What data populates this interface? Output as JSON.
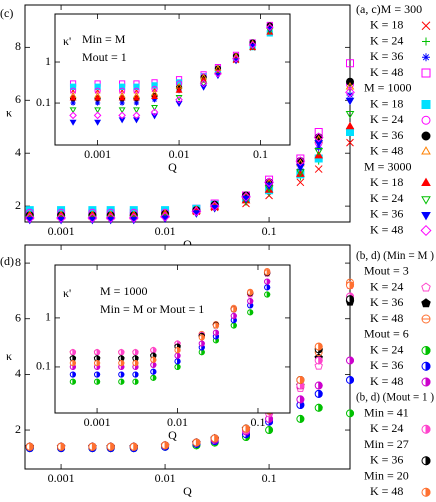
{
  "chart_data": [
    {
      "type": "scatter",
      "label": "(c)",
      "xlabel": "Q",
      "ylabel": "κ",
      "xscale": "log",
      "x": [
        0.0005,
        0.001,
        0.002,
        0.003,
        0.005,
        0.01,
        0.02,
        0.03,
        0.06,
        0.1,
        0.2,
        0.3,
        0.6
      ],
      "xlim": [
        0.00045,
        0.6
      ],
      "xticks": [
        0.001,
        0.01,
        0.1
      ],
      "ylim": [
        1.4,
        9.6
      ],
      "yticks": [
        2,
        4,
        6,
        8
      ],
      "inset": {
        "xlabel": "Q",
        "ylabel": "κ'",
        "xscale": "log",
        "yscale": "log",
        "text": [
          "Min = M",
          "Mout = 1"
        ],
        "x": [
          0.0005,
          0.001,
          0.002,
          0.003,
          0.005,
          0.01,
          0.02,
          0.03,
          0.05,
          0.08,
          0.13
        ],
        "xlim": [
          0.0003,
          0.23
        ],
        "xticks": [
          0.001,
          0.01,
          0.1
        ],
        "ylim": [
          0.0095,
          14.8
        ],
        "yticks": [
          0.1,
          1
        ]
      },
      "groups": [
        {
          "title": "(a, c)M = 300",
          "series": [
            {
              "name": "K = 18",
              "color": "#ff0000",
              "marker": "x",
              "values": [
                1.65,
                1.65,
                1.65,
                1.65,
                1.65,
                1.7,
                1.8,
                1.95,
                2.1,
                2.4,
                2.9,
                3.4,
                4.4
              ],
              "inset_values": [
                0.2,
                0.2,
                0.2,
                0.2,
                0.22,
                0.28,
                0.4,
                0.6,
                1.1,
                2.2,
                5
              ]
            },
            {
              "name": "K = 24",
              "color": "#00c000",
              "marker": "plus",
              "values": [
                1.65,
                1.65,
                1.65,
                1.65,
                1.65,
                1.7,
                1.8,
                1.95,
                2.15,
                2.5,
                3.1,
                3.7,
                4.8
              ],
              "inset_values": [
                0.12,
                0.12,
                0.12,
                0.12,
                0.14,
                0.22,
                0.38,
                0.6,
                1.2,
                2.4,
                5.5
              ]
            },
            {
              "name": "K = 36",
              "color": "#0000ff",
              "marker": "star",
              "values": [
                1.65,
                1.65,
                1.65,
                1.65,
                1.65,
                1.7,
                1.85,
                2.0,
                2.25,
                2.7,
                3.4,
                4.2,
                6.2
              ],
              "inset_values": [
                0.1,
                0.1,
                0.1,
                0.1,
                0.12,
                0.2,
                0.38,
                0.62,
                1.3,
                2.7,
                6.5
              ]
            },
            {
              "name": "K = 48",
              "color": "#ff00ff",
              "marker": "square",
              "values": [
                1.75,
                1.75,
                1.75,
                1.75,
                1.75,
                1.8,
                1.9,
                2.1,
                2.4,
                3.0,
                3.8,
                4.8,
                7.4
              ],
              "inset_values": [
                0.3,
                0.3,
                0.3,
                0.3,
                0.32,
                0.38,
                0.5,
                0.75,
                1.5,
                3,
                8
              ]
            }
          ]
        },
        {
          "title": "M = 1000",
          "series": [
            {
              "name": "K = 18",
              "color": "#00e0ff",
              "marker": "square-filled",
              "values": [
                1.85,
                1.85,
                1.85,
                1.85,
                1.85,
                1.85,
                1.9,
                2.05,
                2.3,
                2.6,
                3.2,
                3.8,
                4.8
              ],
              "inset_values": [
                0.25,
                0.25,
                0.25,
                0.25,
                0.27,
                0.32,
                0.45,
                0.65,
                1.2,
                2.3,
                5
              ]
            },
            {
              "name": "K = 24",
              "color": "#ff00ff",
              "marker": "circle",
              "values": [
                1.75,
                1.75,
                1.75,
                1.75,
                1.75,
                1.75,
                1.85,
                2.05,
                2.35,
                2.8,
                3.6,
                4.4,
                6.6
              ],
              "inset_values": [
                0.2,
                0.2,
                0.2,
                0.2,
                0.22,
                0.3,
                0.45,
                0.7,
                1.4,
                2.9,
                7.5
              ]
            },
            {
              "name": "K = 36",
              "color": "#000000",
              "marker": "circle-filled",
              "values": [
                1.65,
                1.65,
                1.65,
                1.65,
                1.65,
                1.7,
                1.85,
                2.05,
                2.4,
                2.9,
                3.7,
                4.6,
                6.7
              ],
              "inset_values": [
                0.13,
                0.13,
                0.13,
                0.13,
                0.15,
                0.24,
                0.42,
                0.7,
                1.4,
                3,
                7.8
              ]
            },
            {
              "name": "K = 48",
              "color": "#ff8000",
              "marker": "triangle",
              "values": [
                1.65,
                1.65,
                1.65,
                1.65,
                1.65,
                1.7,
                1.85,
                2.0,
                2.35,
                2.85,
                3.6,
                4.5,
                6.5
              ],
              "inset_values": [
                0.15,
                0.15,
                0.15,
                0.15,
                0.17,
                0.25,
                0.42,
                0.68,
                1.35,
                2.8,
                7.2
              ]
            }
          ]
        },
        {
          "title": "M = 3000",
          "series": [
            {
              "name": "K = 18",
              "color": "#ff0000",
              "marker": "triangle-filled",
              "values": [
                1.6,
                1.6,
                1.6,
                1.6,
                1.6,
                1.65,
                1.8,
                1.95,
                2.2,
                2.6,
                3.2,
                3.9,
                5.0
              ],
              "inset_values": [
                0.13,
                0.13,
                0.13,
                0.13,
                0.14,
                0.2,
                0.35,
                0.55,
                1.1,
                2.2,
                5.2
              ]
            },
            {
              "name": "K = 24",
              "color": "#00c000",
              "marker": "triangle-down",
              "values": [
                1.55,
                1.55,
                1.55,
                1.55,
                1.55,
                1.6,
                1.75,
                1.95,
                2.25,
                2.7,
                3.3,
                4.1,
                5.5
              ],
              "inset_values": [
                0.07,
                0.07,
                0.07,
                0.07,
                0.08,
                0.14,
                0.3,
                0.5,
                1.1,
                2.4,
                6
              ]
            },
            {
              "name": "K = 36",
              "color": "#0000ff",
              "marker": "triangle-down-filled",
              "values": [
                1.5,
                1.5,
                1.5,
                1.5,
                1.5,
                1.55,
                1.75,
                1.95,
                2.3,
                2.8,
                3.5,
                4.4,
                6.0
              ],
              "inset_values": [
                0.035,
                0.035,
                0.04,
                0.04,
                0.05,
                0.1,
                0.25,
                0.48,
                1.1,
                2.5,
                6.5
              ]
            },
            {
              "name": "K = 48",
              "color": "#ff00ff",
              "marker": "diamond",
              "values": [
                1.55,
                1.55,
                1.55,
                1.55,
                1.55,
                1.6,
                1.8,
                2.0,
                2.35,
                2.9,
                3.7,
                4.6,
                6.3
              ],
              "inset_values": [
                0.05,
                0.05,
                0.05,
                0.05,
                0.06,
                0.12,
                0.3,
                0.52,
                1.2,
                2.6,
                7
              ]
            }
          ]
        }
      ]
    },
    {
      "type": "scatter",
      "label": "(d)",
      "xlabel": "Q",
      "ylabel": "κ",
      "xscale": "log",
      "x": [
        0.0005,
        0.001,
        0.002,
        0.003,
        0.005,
        0.01,
        0.02,
        0.03,
        0.06,
        0.1,
        0.2,
        0.3,
        0.6
      ],
      "xlim": [
        0.00045,
        0.6
      ],
      "xticks": [
        0.001,
        0.01,
        0.1
      ],
      "ylim": [
        0.6,
        8.65
      ],
      "yticks": [
        2,
        4,
        6,
        8
      ],
      "inset": {
        "xlabel": "Q",
        "ylabel": "κ'",
        "xscale": "log",
        "yscale": "log",
        "text": [
          "M = 1000",
          "Min = M or Mout = 1"
        ],
        "x": [
          0.0005,
          0.001,
          0.002,
          0.003,
          0.005,
          0.01,
          0.02,
          0.03,
          0.05,
          0.08,
          0.13
        ],
        "xlim": [
          0.0003,
          0.25
        ],
        "xticks": [
          0.001,
          0.01,
          0.1
        ],
        "ylim": [
          0.0115,
          12
        ],
        "yticks": [
          0.1,
          1
        ]
      },
      "groups": [
        {
          "heading": "(b, d) (Min = M )",
          "title": "Mout = 3",
          "series": [
            {
              "name": "K = 24",
              "color": "#ff44cc",
              "marker": "pentagon",
              "values": [
                1.4,
                1.4,
                1.4,
                1.4,
                1.4,
                1.45,
                1.55,
                1.7,
                2.0,
                2.6,
                3.5,
                4.3,
                7.2
              ],
              "inset_values": [
                0.2,
                0.2,
                0.2,
                0.2,
                0.22,
                0.3,
                0.45,
                0.7,
                1.5,
                3,
                8.5
              ]
            },
            {
              "name": "K = 36",
              "color": "#000000",
              "marker": "pentagon-filled",
              "values": [
                1.4,
                1.4,
                1.4,
                1.4,
                1.4,
                1.45,
                1.55,
                1.7,
                2.05,
                2.7,
                3.6,
                4.6,
                6.6
              ],
              "inset_values": [
                0.15,
                0.15,
                0.15,
                0.15,
                0.17,
                0.26,
                0.42,
                0.7,
                1.5,
                3.2,
                8
              ]
            },
            {
              "name": "K = 48",
              "color": "#ff7030",
              "marker": "circle-cross",
              "values": [
                1.4,
                1.4,
                1.4,
                1.4,
                1.4,
                1.45,
                1.55,
                1.7,
                2.05,
                2.8,
                3.8,
                4.8,
                7.3
              ],
              "inset_values": [
                0.2,
                0.2,
                0.2,
                0.2,
                0.22,
                0.3,
                0.47,
                0.75,
                1.6,
                3.4,
                9
              ]
            }
          ]
        },
        {
          "title": "Mout = 6",
          "series": [
            {
              "name": "K = 24",
              "color": "#00c000",
              "marker": "half-circle",
              "values": [
                1.35,
                1.35,
                1.35,
                1.35,
                1.35,
                1.4,
                1.45,
                1.55,
                1.75,
                2.0,
                2.4,
                2.8,
                2.6
              ],
              "inset_values": [
                0.05,
                0.05,
                0.05,
                0.05,
                0.06,
                0.1,
                0.2,
                0.35,
                0.7,
                1.3,
                3
              ]
            },
            {
              "name": "K = 36",
              "color": "#0000ff",
              "marker": "half-circle",
              "values": [
                1.35,
                1.35,
                1.35,
                1.35,
                1.35,
                1.4,
                1.5,
                1.6,
                1.85,
                2.3,
                2.9,
                3.3,
                3.8
              ],
              "inset_values": [
                0.07,
                0.07,
                0.07,
                0.07,
                0.08,
                0.13,
                0.25,
                0.42,
                0.9,
                1.8,
                4.2
              ]
            },
            {
              "name": "K = 48",
              "color": "#cc00cc",
              "marker": "half-circle",
              "values": [
                1.4,
                1.4,
                1.4,
                1.4,
                1.4,
                1.45,
                1.55,
                1.65,
                1.95,
                2.4,
                3.1,
                3.6,
                4.5
              ],
              "inset_values": [
                0.1,
                0.1,
                0.1,
                0.1,
                0.11,
                0.17,
                0.3,
                0.5,
                1.1,
                2.2,
                5.5
              ]
            }
          ]
        },
        {
          "heading": "(b, d) (Mout = 1 )",
          "title": "Min = 41",
          "series": [
            {
              "name": "K = 24",
              "color": "#ff44cc",
              "marker": "half-circle",
              "values": [
                1.4,
                1.4,
                1.4,
                1.4,
                1.4,
                1.45,
                1.55,
                1.7,
                2.0,
                2.6,
                3.6,
                4.5,
                6.8
              ],
              "inset_values": [
                0.2,
                0.2,
                0.2,
                0.2,
                0.22,
                0.3,
                0.45,
                0.72,
                1.5,
                3.1,
                8
              ]
            }
          ]
        },
        {
          "title": "Min = 27",
          "series": [
            {
              "name": "K = 36",
              "color": "#000000",
              "marker": "half-circle",
              "values": [
                1.4,
                1.4,
                1.4,
                1.4,
                1.4,
                1.45,
                1.55,
                1.7,
                2.05,
                2.7,
                3.8,
                4.9,
                6.7
              ],
              "inset_values": [
                0.15,
                0.15,
                0.15,
                0.15,
                0.17,
                0.26,
                0.43,
                0.72,
                1.5,
                3.2,
                8.2
              ]
            }
          ]
        },
        {
          "title": "Min = 20",
          "series": [
            {
              "name": "K = 48",
              "color": "#ff7030",
              "marker": "half-circle",
              "values": [
                1.4,
                1.4,
                1.4,
                1.4,
                1.4,
                1.45,
                1.55,
                1.7,
                2.05,
                2.7,
                3.8,
                5.0,
                7.2
              ],
              "inset_values": [
                0.12,
                0.12,
                0.12,
                0.12,
                0.14,
                0.22,
                0.4,
                0.7,
                1.5,
                3.3,
                8.5
              ]
            }
          ]
        }
      ]
    }
  ]
}
